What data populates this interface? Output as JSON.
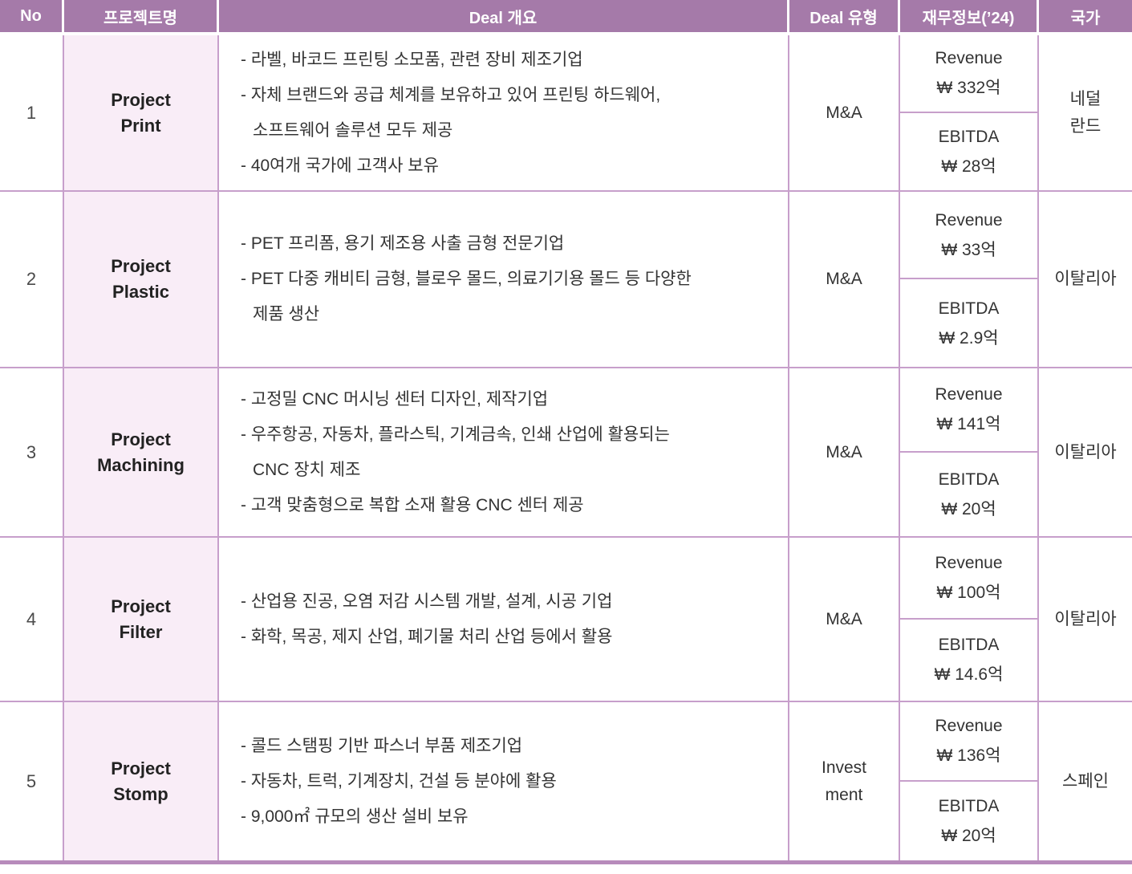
{
  "colors": {
    "header_bg": "#a57aa9",
    "header_text": "#ffffff",
    "project_col_bg": "#f9edf7",
    "border": "#c79fcb",
    "bottom_border": "#b78bbb",
    "text": "#2f2f2f"
  },
  "table": {
    "headers": [
      "No",
      "프로젝트명",
      "Deal 개요",
      "Deal 유형",
      "재무정보(’24)",
      "국가"
    ],
    "rows": [
      {
        "no": "1",
        "project": [
          "Project",
          "Print"
        ],
        "overview": [
          "- 라벨, 바코드 프린팅 소모품, 관련 장비 제조기업",
          "- 자체 브랜드와 공급 체계를 보유하고 있어 프린팅 하드웨어,",
          "소프트웨어 솔루션 모두 제공",
          "- 40여개 국가에 고객사 보유"
        ],
        "deal_type": [
          "M&A"
        ],
        "financials": {
          "revenue_label": "Revenue",
          "revenue_value": "₩ 332억",
          "ebitda_label": "EBITDA",
          "ebitda_value": "₩ 28억"
        },
        "country": [
          "네덜",
          "란드"
        ]
      },
      {
        "no": "2",
        "project": [
          "Project",
          "Plastic"
        ],
        "overview": [
          "- PET 프리폼, 용기 제조용 사출 금형 전문기업",
          "- PET 다중 캐비티 금형, 블로우 몰드, 의료기기용 몰드 등 다양한",
          "제품 생산"
        ],
        "deal_type": [
          "M&A"
        ],
        "financials": {
          "revenue_label": "Revenue",
          "revenue_value": "₩ 33억",
          "ebitda_label": "EBITDA",
          "ebitda_value": "₩ 2.9억"
        },
        "country": [
          "이탈리아"
        ]
      },
      {
        "no": "3",
        "project": [
          "Project",
          "Machining"
        ],
        "overview": [
          "- 고정밀 CNC 머시닝 센터 디자인, 제작기업",
          "- 우주항공, 자동차, 플라스틱, 기계금속, 인쇄 산업에 활용되는",
          "CNC 장치 제조",
          "- 고객 맞춤형으로 복합 소재 활용 CNC 센터 제공"
        ],
        "deal_type": [
          "M&A"
        ],
        "financials": {
          "revenue_label": "Revenue",
          "revenue_value": "₩ 141억",
          "ebitda_label": "EBITDA",
          "ebitda_value": "₩ 20억"
        },
        "country": [
          "이탈리아"
        ]
      },
      {
        "no": "4",
        "project": [
          "Project",
          "Filter"
        ],
        "overview": [
          "- 산업용 진공, 오염 저감 시스템 개발, 설계, 시공 기업",
          "- 화학, 목공, 제지 산업, 폐기물 처리 산업 등에서 활용"
        ],
        "deal_type": [
          "M&A"
        ],
        "financials": {
          "revenue_label": "Revenue",
          "revenue_value": "₩ 100억",
          "ebitda_label": "EBITDA",
          "ebitda_value": "₩ 14.6억"
        },
        "country": [
          "이탈리아"
        ]
      },
      {
        "no": "5",
        "project": [
          "Project",
          "Stomp"
        ],
        "overview": [
          "- 콜드 스탬핑 기반 파스너 부품 제조기업",
          "- 자동차, 트럭, 기계장치, 건설 등 분야에 활용",
          "- 9,000㎡ 규모의 생산 설비 보유"
        ],
        "deal_type": [
          "Invest",
          "ment"
        ],
        "financials": {
          "revenue_label": "Revenue",
          "revenue_value": "₩ 136억",
          "ebitda_label": "EBITDA",
          "ebitda_value": "₩ 20억"
        },
        "country": [
          "스페인"
        ]
      }
    ]
  }
}
